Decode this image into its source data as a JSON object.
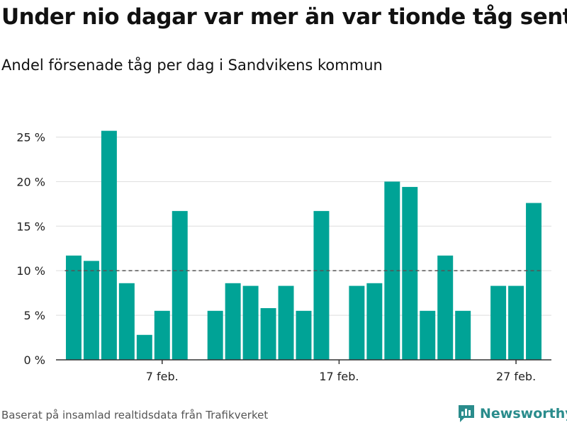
{
  "header": {
    "title": "Under nio dagar var mer än var tionde tåg sent",
    "subtitle": "Andel försenade tåg per dag i Sandvikens kommun"
  },
  "footer": {
    "source": "Baserat på insamlad realtidsdata från Trafikverket",
    "brand": "Newsworthy"
  },
  "colors": {
    "bar": "#00a396",
    "reference_line": "#555555",
    "grid": "#dddddd",
    "brand": "#2a8c8c"
  },
  "chart_data": {
    "type": "bar",
    "title": "Under nio dagar var mer än var tionde tåg sent",
    "subtitle": "Andel försenade tåg per dag i Sandvikens kommun",
    "xlabel": "",
    "ylabel": "",
    "x_start": "2024-02-01",
    "x_end": "2024-02-29",
    "ylim": [
      0,
      27.5
    ],
    "yticks": [
      0,
      5,
      10,
      15,
      20,
      25
    ],
    "ytick_labels": [
      "0 %",
      "5 %",
      "10 %",
      "15 %",
      "20 %",
      "25 %"
    ],
    "xticks": [
      "2024-02-07",
      "2024-02-17",
      "2024-02-27"
    ],
    "xtick_labels": [
      "7 feb.",
      "17 feb.",
      "27 feb."
    ],
    "reference_line": {
      "y": 10,
      "style": "dashed"
    },
    "grid": true,
    "dates": [
      "2024-02-02",
      "2024-02-03",
      "2024-02-04",
      "2024-02-05",
      "2024-02-06",
      "2024-02-07",
      "2024-02-08",
      "2024-02-09",
      "2024-02-10",
      "2024-02-11",
      "2024-02-12",
      "2024-02-13",
      "2024-02-14",
      "2024-02-15",
      "2024-02-16",
      "2024-02-17",
      "2024-02-18",
      "2024-02-19",
      "2024-02-20",
      "2024-02-21",
      "2024-02-22",
      "2024-02-23",
      "2024-02-24",
      "2024-02-25",
      "2024-02-26",
      "2024-02-27",
      "2024-02-28"
    ],
    "values": [
      11.7,
      11.1,
      25.7,
      8.6,
      2.8,
      5.5,
      16.7,
      null,
      5.5,
      8.6,
      8.3,
      5.8,
      8.3,
      5.5,
      16.7,
      null,
      8.3,
      8.6,
      20.0,
      19.4,
      5.5,
      11.7,
      5.5,
      null,
      8.3,
      8.3,
      17.6
    ]
  }
}
